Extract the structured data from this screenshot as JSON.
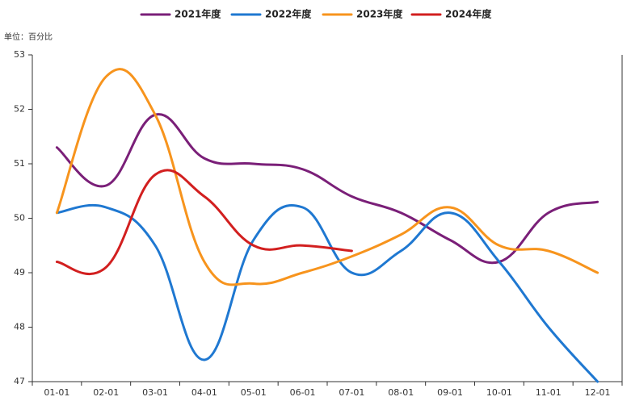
{
  "chart_data": {
    "type": "line",
    "unit_label": "单位：百分比",
    "categories": [
      "01-01",
      "02-01",
      "03-01",
      "04-01",
      "05-01",
      "06-01",
      "07-01",
      "08-01",
      "09-01",
      "10-01",
      "11-01",
      "12-01"
    ],
    "series": [
      {
        "name": "2021年度",
        "color": "#7a1f78",
        "values": [
          51.3,
          50.6,
          51.9,
          51.1,
          51.0,
          50.9,
          50.4,
          50.1,
          49.6,
          49.2,
          50.1,
          50.3
        ]
      },
      {
        "name": "2022年度",
        "color": "#1f78d1",
        "values": [
          50.1,
          50.2,
          49.5,
          47.4,
          49.6,
          50.2,
          49.0,
          49.4,
          50.1,
          49.2,
          48.0,
          47.0
        ]
      },
      {
        "name": "2023年度",
        "color": "#f7941d",
        "values": [
          50.1,
          52.6,
          51.9,
          49.2,
          48.8,
          49.0,
          49.3,
          49.7,
          50.2,
          49.5,
          49.4,
          49.0
        ]
      },
      {
        "name": "2024年度",
        "color": "#d21f1f",
        "values": [
          49.2,
          49.1,
          50.8,
          50.4,
          49.5,
          49.5,
          49.4,
          null,
          null,
          null,
          null,
          null
        ]
      }
    ],
    "ylim": [
      47,
      53
    ],
    "yticks": [
      47,
      48,
      49,
      50,
      51,
      52,
      53
    ],
    "legend": "top"
  }
}
